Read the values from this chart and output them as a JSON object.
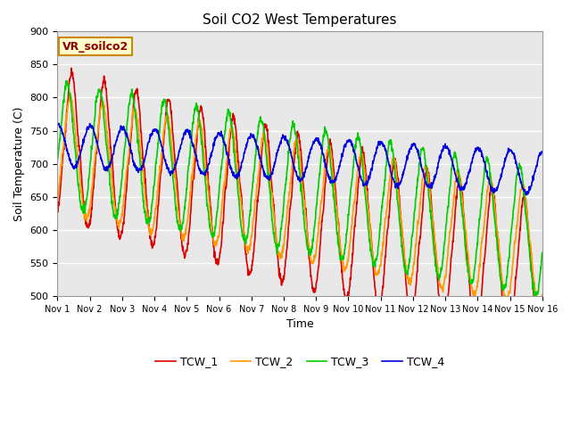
{
  "title": "Soil CO2 West Temperatures",
  "ylabel": "Soil Temperature (C)",
  "xlabel": "Time",
  "annotation": "VR_soilco2",
  "ylim": [
    500,
    900
  ],
  "xlim": [
    0,
    15
  ],
  "xtick_labels": [
    "Nov 1",
    "Nov 2",
    "Nov 3",
    "Nov 4",
    "Nov 5",
    "Nov 6",
    "Nov 7",
    "Nov 8",
    "Nov 9",
    "Nov 10",
    "Nov 11",
    "Nov 12",
    "Nov 13",
    "Nov 14",
    "Nov 15",
    "Nov 16"
  ],
  "colors": {
    "TCW_1": "#dd0000",
    "TCW_2": "#ff9900",
    "TCW_3": "#00cc00",
    "TCW_4": "#0000dd"
  },
  "bg_color": "#e8e8e8",
  "title_fontsize": 11,
  "axis_label_fontsize": 9,
  "tick_fontsize": 8,
  "legend_fontsize": 9,
  "annotation_fontsize": 9,
  "linewidth": 1.2
}
